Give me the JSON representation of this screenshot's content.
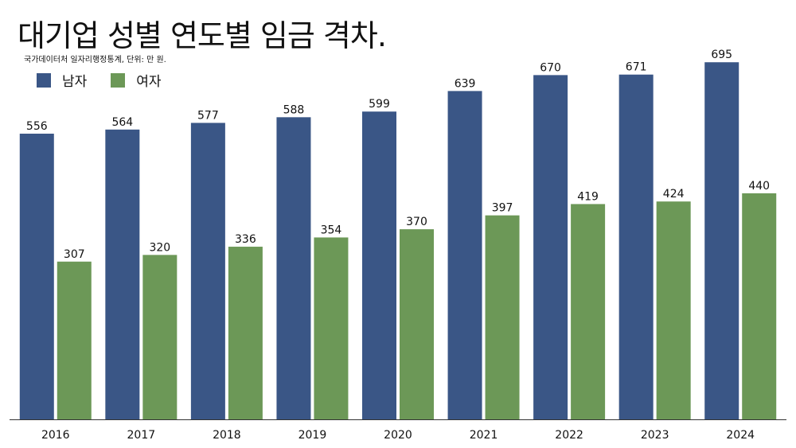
{
  "chart_data": {
    "type": "bar",
    "title": "대기업 성별 연도별 임금 격차.",
    "subtitle": "국가데이터처 일자리행정통계, 단위: 만 원.",
    "categories": [
      "2016",
      "2017",
      "2018",
      "2019",
      "2020",
      "2021",
      "2022",
      "2023",
      "2024"
    ],
    "series": [
      {
        "name": "남자",
        "color": "#3a5686",
        "values": [
          556,
          564,
          577,
          588,
          599,
          639,
          670,
          671,
          695
        ]
      },
      {
        "name": "여자",
        "color": "#6c9857",
        "values": [
          307,
          320,
          336,
          354,
          370,
          397,
          419,
          424,
          440
        ]
      }
    ],
    "ylim": [
      0,
      700
    ],
    "grid": false,
    "legend": "top-left",
    "data_labels": true
  }
}
